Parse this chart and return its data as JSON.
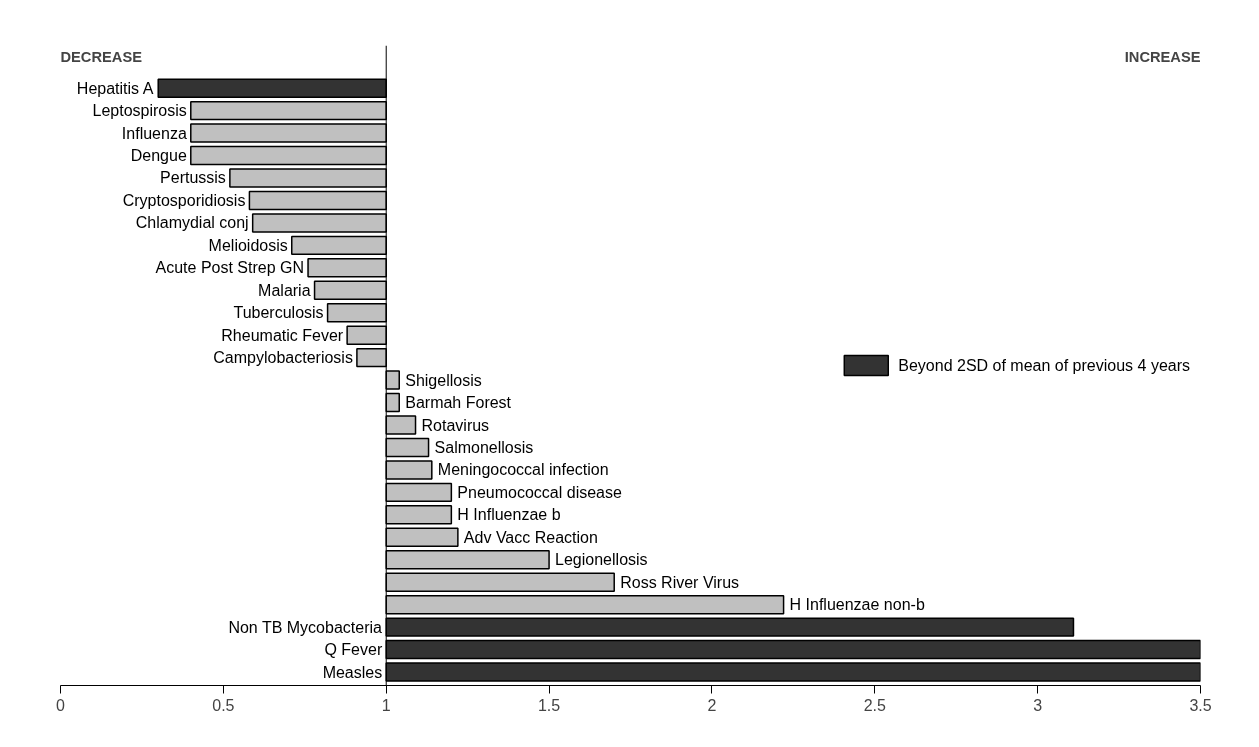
{
  "chart_data": {
    "type": "bar",
    "orientation": "horizontal",
    "categories": [
      "Hepatitis A",
      "Leptospirosis",
      "Influenza",
      "Dengue",
      "Pertussis",
      "Cryptosporidiosis",
      "Chlamydial conj",
      "Melioidosis",
      "Acute Post Strep GN",
      "Malaria",
      "Tuberculosis",
      "Rheumatic Fever",
      "Campylobacteriosis",
      "Shigellosis",
      "Barmah Forest",
      "Rotavirus",
      "Salmonellosis",
      "Meningococcal infection",
      "Pneumococcal disease",
      "H Influenzae b",
      "Adv Vacc Reaction",
      "Legionellosis",
      "Ross River Virus",
      "H Influenzae non-b",
      "Non TB Mycobacteria",
      "Q Fever",
      "Measles"
    ],
    "series": [
      {
        "name": "Beyond 2SD of mean of previous 4 years",
        "color": "#333333",
        "base": [
          1,
          null,
          null,
          null,
          null,
          null,
          null,
          null,
          null,
          null,
          null,
          null,
          null,
          null,
          null,
          null,
          null,
          null,
          null,
          null,
          null,
          null,
          null,
          null,
          1,
          1,
          1
        ],
        "values": [
          -0.7,
          null,
          null,
          null,
          null,
          null,
          null,
          null,
          null,
          null,
          null,
          null,
          null,
          null,
          null,
          null,
          null,
          null,
          null,
          null,
          null,
          null,
          null,
          null,
          2.11,
          2.5,
          2.5
        ]
      },
      {
        "color": "#c0c0c0",
        "base": [
          null,
          1,
          1,
          1,
          1,
          1,
          1,
          1,
          1,
          1,
          1,
          1,
          1,
          1,
          1,
          1,
          1,
          1,
          1,
          1,
          1,
          1,
          1,
          1,
          null,
          null,
          null
        ],
        "values": [
          null,
          -0.6,
          -0.6,
          -0.6,
          -0.48,
          -0.42,
          -0.41,
          -0.29,
          -0.24,
          -0.22,
          -0.18,
          -0.12,
          -0.09,
          0.04,
          0.04,
          0.09,
          0.13,
          0.14,
          0.2,
          0.2,
          0.22,
          0.5,
          0.7,
          1.22,
          null,
          null,
          null
        ]
      }
    ],
    "xlim": [
      0,
      3.5
    ],
    "xticks": [
      0,
      0.5,
      1,
      1.5,
      2,
      2.5,
      3,
      3.5
    ],
    "ref_lines": [
      {
        "axis": "x",
        "value": 1,
        "color": "#000000"
      }
    ],
    "annotations": [
      "DECREASE",
      "INCREASE"
    ],
    "grid": false,
    "legend": "right"
  }
}
